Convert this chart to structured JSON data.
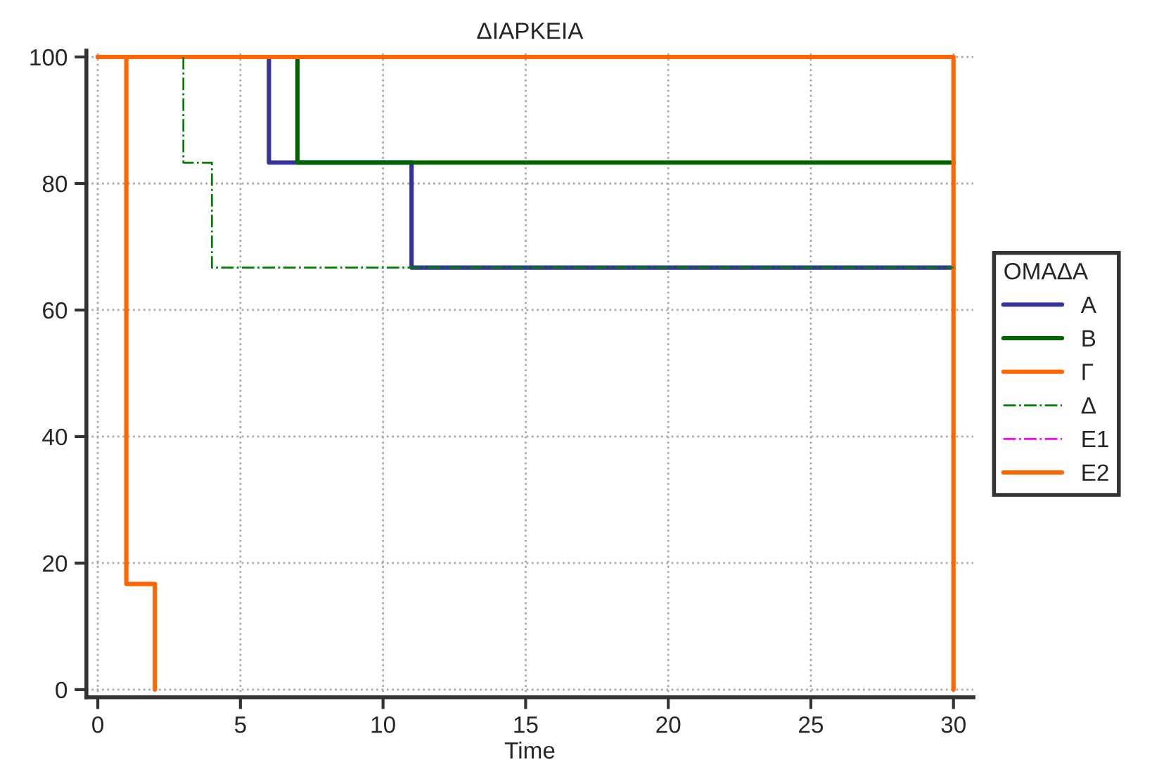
{
  "chart_data": {
    "type": "step",
    "title": "ΔΙΑΡΚΕΙΑ",
    "xlabel": "Time",
    "legend_title": "ΟΜΑΔΑ",
    "series": [
      {
        "name": "Α",
        "color": "#33339a",
        "x": [
          0,
          6,
          11,
          30
        ],
        "values": [
          100,
          83.3,
          66.7,
          66.7
        ]
      },
      {
        "name": "Β",
        "color": "#006400",
        "x": [
          0,
          7,
          30
        ],
        "values": [
          100,
          83.3,
          83.3
        ]
      },
      {
        "name": "Γ",
        "color": "#ff6600",
        "x": [
          0,
          1,
          2
        ],
        "values": [
          100,
          16.7,
          0
        ]
      },
      {
        "name": "Δ",
        "color": "#008000",
        "line_style": "dashdot",
        "x": [
          3,
          3,
          4,
          30
        ],
        "values": [
          100,
          83.3,
          66.7,
          66.7
        ]
      },
      {
        "name": "Ε1",
        "color": "#ff00ff",
        "line_style": "dashdot"
      },
      {
        "name": "Ε2",
        "color": "#ff6600",
        "x": [
          0,
          30,
          30
        ],
        "values": [
          100,
          100,
          0
        ]
      }
    ],
    "xlim": [
      -0.4,
      30.7
    ],
    "ylim": [
      -1.2,
      101
    ],
    "xticks": [
      0,
      5,
      10,
      15,
      20,
      25,
      30
    ],
    "yticks": [
      0,
      20,
      40,
      60,
      80,
      100
    ],
    "grid": true,
    "legend": "right",
    "line_style": "solid",
    "marker": "none"
  }
}
